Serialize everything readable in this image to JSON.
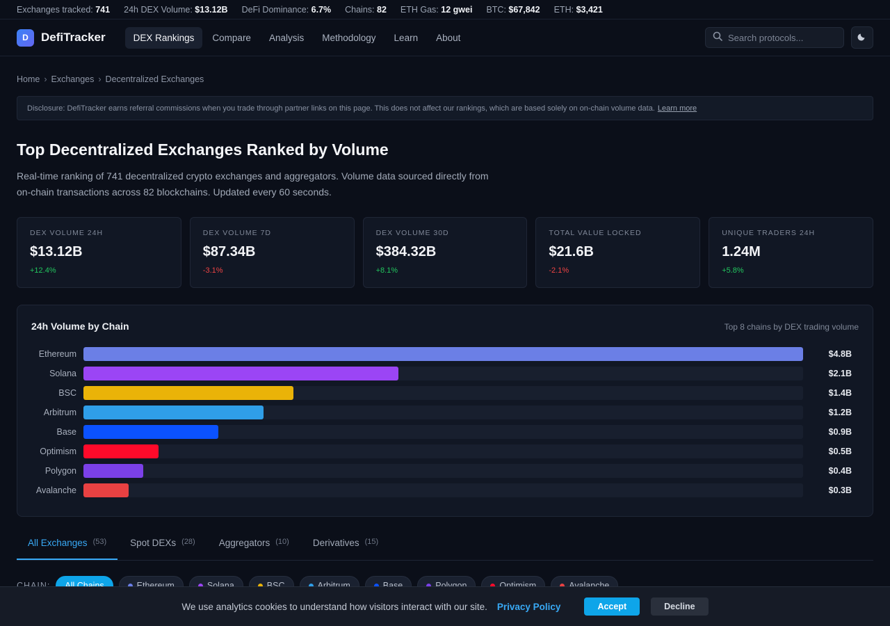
{
  "ticker": [
    {
      "label": "Exchanges tracked:",
      "value": "741"
    },
    {
      "label": "24h DEX Volume:",
      "value": "$13.12B"
    },
    {
      "label": "DeFi Dominance:",
      "value": "6.7%"
    },
    {
      "label": "Chains:",
      "value": "82"
    },
    {
      "label": "ETH Gas:",
      "value": "12 gwei"
    },
    {
      "label": "BTC:",
      "value": "$67,842"
    },
    {
      "label": "ETH:",
      "value": "$3,421"
    }
  ],
  "nav": {
    "logo_mark": "D",
    "logo_text": "DefiTracker",
    "links": [
      "DEX Rankings",
      "Compare",
      "Analysis",
      "Methodology",
      "Learn",
      "About"
    ],
    "active_index": 0,
    "search_placeholder": "Search protocols...",
    "theme_icon": "moon-icon"
  },
  "breadcrumb": [
    "Home",
    "Exchanges",
    "Decentralized Exchanges"
  ],
  "disclosure": {
    "text": "Disclosure: DefiTracker earns referral commissions when you trade through partner links on this page. This does not affect our rankings, which are based solely on on-chain volume data.",
    "link": "Learn more"
  },
  "page": {
    "title": "Top Decentralized Exchanges Ranked by Volume",
    "intro": "Real-time ranking of 741 decentralized crypto exchanges and aggregators. Volume data sourced directly from on-chain transactions across 82 blockchains. Updated every 60 seconds."
  },
  "stats": [
    {
      "label": "DEX Volume 24H",
      "value": "$13.12B",
      "delta": "+12.4%",
      "trend": "up"
    },
    {
      "label": "DEX Volume 7D",
      "value": "$87.34B",
      "delta": "-3.1%",
      "trend": "down"
    },
    {
      "label": "DEX Volume 30D",
      "value": "$384.32B",
      "delta": "+8.1%",
      "trend": "up"
    },
    {
      "label": "Total Value Locked",
      "value": "$21.6B",
      "delta": "-2.1%",
      "trend": "down"
    },
    {
      "label": "Unique Traders 24H",
      "value": "1.24M",
      "delta": "+5.8%",
      "trend": "up"
    }
  ],
  "chart_data": {
    "type": "bar",
    "orientation": "horizontal",
    "title": "24h Volume by Chain",
    "subtitle": "Top 8 chains by DEX trading volume",
    "categories": [
      "Ethereum",
      "Solana",
      "BSC",
      "Arbitrum",
      "Base",
      "Optimism",
      "Polygon",
      "Avalanche"
    ],
    "values": [
      4.8,
      2.1,
      1.4,
      1.2,
      0.9,
      0.5,
      0.4,
      0.3
    ],
    "value_labels": [
      "$4.8B",
      "$2.1B",
      "$1.4B",
      "$1.2B",
      "$0.9B",
      "$0.5B",
      "$0.4B",
      "$0.3B"
    ],
    "colors": [
      "#6b7fe6",
      "#9b45f5",
      "#eab308",
      "#2f9ee8",
      "#0b52ff",
      "#ff0a2a",
      "#7b40e8",
      "#e84142"
    ],
    "xlim": [
      0,
      4.8
    ],
    "grid": false
  },
  "tabs": [
    {
      "label": "All Exchanges",
      "count": "(53)"
    },
    {
      "label": "Spot DEXs",
      "count": "(28)"
    },
    {
      "label": "Aggregators",
      "count": "(10)"
    },
    {
      "label": "Derivatives",
      "count": "(15)"
    }
  ],
  "active_tab": 0,
  "chain_filter": {
    "label": "CHAIN:",
    "options": [
      {
        "label": "All Chains",
        "color": ""
      },
      {
        "label": "Ethereum",
        "color": "#6b7fe6"
      },
      {
        "label": "Solana",
        "color": "#9b45f5"
      },
      {
        "label": "BSC",
        "color": "#eab308"
      },
      {
        "label": "Arbitrum",
        "color": "#2f9ee8"
      },
      {
        "label": "Base",
        "color": "#0b52ff"
      },
      {
        "label": "Polygon",
        "color": "#7b40e8"
      },
      {
        "label": "Optimism",
        "color": "#ff0a2a"
      },
      {
        "label": "Avalanche",
        "color": "#e84142"
      }
    ],
    "active_index": 0
  },
  "cookie": {
    "text": "We use analytics cookies to understand how visitors interact with our site.",
    "link": "Privacy Policy",
    "accept": "Accept",
    "decline": "Decline"
  }
}
